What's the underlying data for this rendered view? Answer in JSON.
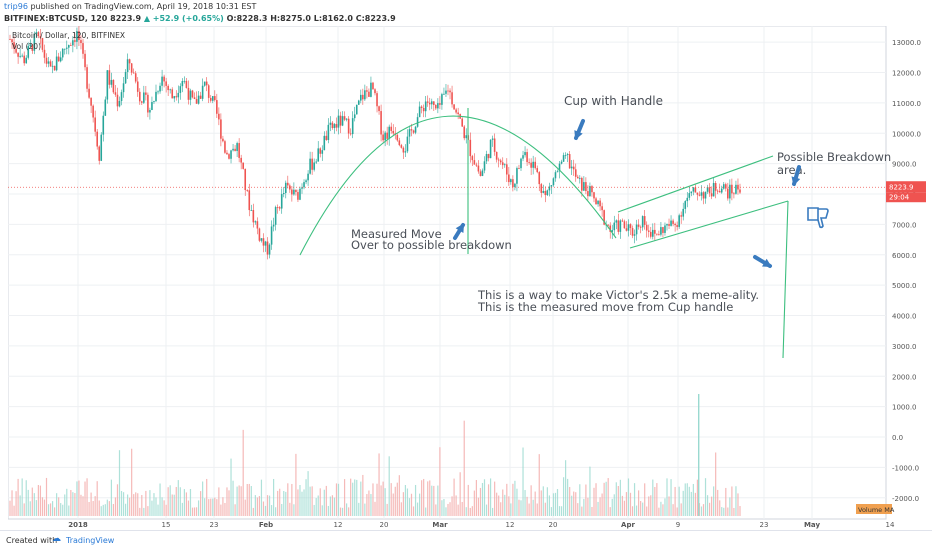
{
  "header": {
    "user": "trip96",
    "published": "published on TradingView.com, April 19, 2018 10:31 EST",
    "symbol": "BITFINEX:BTCUSD, 120",
    "last": "8223.9",
    "change": "▲ +52.9 (+0.65%)",
    "ohlc": "O:8228.3 H:8275.0 L:8162.0 C:8223.9"
  },
  "legend": {
    "series": "Bitcoin / Dollar, 120, BITFINEX",
    "vol": "Vol (20)"
  },
  "footer": {
    "created": "Created with",
    "brand": "TradingView"
  },
  "colors": {
    "up": "#26a69a",
    "down": "#ef5350",
    "annotation": "#3a7bbf",
    "pattern": "#3dbf7f",
    "price_line": "#ef5350"
  },
  "chart_data": {
    "type": "candlestick",
    "price_axis": {
      "ticks": [
        "13000.0",
        "12000.0",
        "11000.0",
        "10000.0",
        "9000.0",
        "8000.0",
        "7000.0",
        "6000.0",
        "5000.0",
        "4000.0",
        "3000.0",
        "2000.0",
        "1000.0",
        "0.0",
        "-1000.0",
        "-2000.0"
      ],
      "range": [
        -2600,
        13400
      ]
    },
    "time_axis": [
      "2018",
      "15",
      "23",
      "Feb",
      "12",
      "20",
      "Mar",
      "12",
      "20",
      "Apr",
      "9",
      "23",
      "May",
      "14"
    ],
    "current_price": {
      "label": "8223.9",
      "countdown": "29:04",
      "value": 8223.9
    },
    "volume_label": "Volume MA",
    "price_path": [
      [
        0,
        13100
      ],
      [
        5,
        12400
      ],
      [
        10,
        13200
      ],
      [
        15,
        12000
      ],
      [
        20,
        12800
      ],
      [
        25,
        13300
      ],
      [
        30,
        11000
      ],
      [
        33,
        9300
      ],
      [
        36,
        11900
      ],
      [
        40,
        11000
      ],
      [
        44,
        12400
      ],
      [
        48,
        11300
      ],
      [
        52,
        10800
      ],
      [
        56,
        11900
      ],
      [
        60,
        11200
      ],
      [
        64,
        11800
      ],
      [
        68,
        10900
      ],
      [
        72,
        11600
      ],
      [
        76,
        10800
      ],
      [
        80,
        9300
      ],
      [
        84,
        9600
      ],
      [
        88,
        7800
      ],
      [
        92,
        6700
      ],
      [
        95,
        6100
      ],
      [
        98,
        7300
      ],
      [
        102,
        8200
      ],
      [
        106,
        7900
      ],
      [
        110,
        8800
      ],
      [
        114,
        9300
      ],
      [
        118,
        10100
      ],
      [
        122,
        10400
      ],
      [
        126,
        10200
      ],
      [
        130,
        11200
      ],
      [
        134,
        11500
      ],
      [
        138,
        9900
      ],
      [
        142,
        10200
      ],
      [
        146,
        9500
      ],
      [
        150,
        10400
      ],
      [
        154,
        11100
      ],
      [
        158,
        10700
      ],
      [
        162,
        11500
      ],
      [
        166,
        10500
      ],
      [
        170,
        9500
      ],
      [
        174,
        8600
      ],
      [
        178,
        9700
      ],
      [
        182,
        9000
      ],
      [
        186,
        8300
      ],
      [
        190,
        9400
      ],
      [
        194,
        8900
      ],
      [
        198,
        7900
      ],
      [
        202,
        8700
      ],
      [
        206,
        9200
      ],
      [
        210,
        8400
      ],
      [
        214,
        8100
      ],
      [
        218,
        7500
      ],
      [
        222,
        6800
      ],
      [
        226,
        7000
      ],
      [
        230,
        6700
      ],
      [
        234,
        7200
      ],
      [
        238,
        6600
      ],
      [
        242,
        6900
      ],
      [
        246,
        7000
      ],
      [
        250,
        7800
      ],
      [
        254,
        8100
      ],
      [
        258,
        8000
      ],
      [
        262,
        8300
      ],
      [
        266,
        8050
      ],
      [
        270,
        8224
      ]
    ],
    "annotations": [
      {
        "text": "Cup with Handle"
      },
      {
        "text": "Measured Move"
      },
      {
        "text": "Over to possible breakdown"
      },
      {
        "text": "Possible Breakdown"
      },
      {
        "text": "area."
      },
      {
        "text": "This is a way to make Victor's 2.5k a meme-ality."
      },
      {
        "text": "This is the measured move from Cup handle"
      }
    ]
  }
}
